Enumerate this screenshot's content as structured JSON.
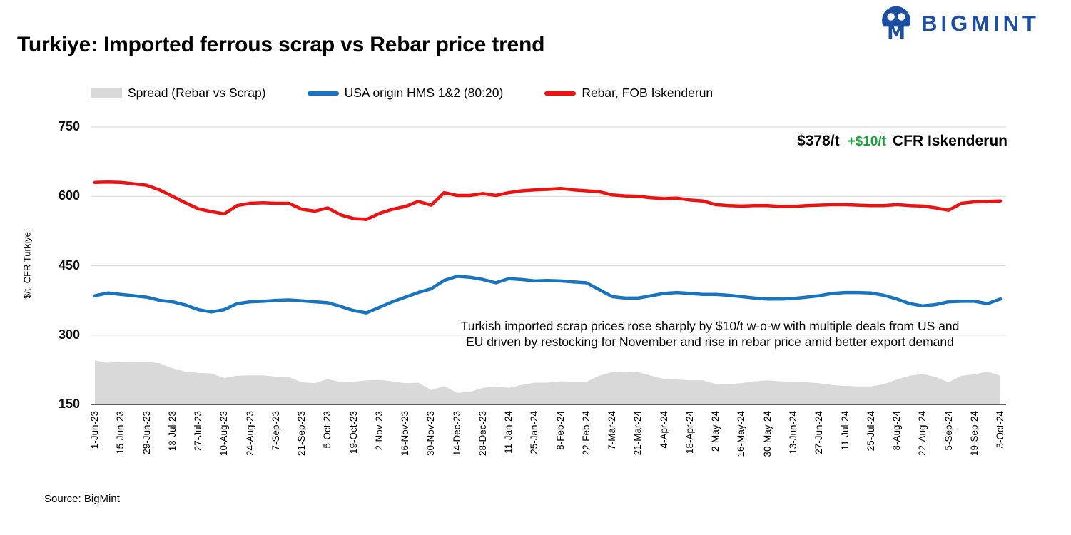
{
  "header": {
    "title": "Turkiye: Imported ferrous scrap vs Rebar price trend",
    "brand": "BIGMINT",
    "brand_color": "#1D4FA1"
  },
  "legend": [
    {
      "label": "Spread (Rebar vs Scrap)",
      "color": "#D9D9D9",
      "type": "area"
    },
    {
      "label": "USA origin HMS 1&2 (80:20)",
      "color": "#1874C0",
      "type": "line"
    },
    {
      "label": "Rebar, FOB Iskenderun",
      "color": "#EE1111",
      "type": "line"
    }
  ],
  "callout": {
    "price": "$378/t",
    "change": "+$10/t",
    "suffix": "CFR Iskenderun",
    "change_color": "#1CA23C"
  },
  "annotation": {
    "line1": "Turkish imported scrap prices rose sharply by $10/t w-o-w with multiple deals from US and",
    "line2": "EU driven by restocking for November and rise in rebar price amid better export demand"
  },
  "axis": {
    "y_title": "$/t, CFR Turkiye"
  },
  "source": "Source: BigMint",
  "chart_data": {
    "type": "line",
    "title": "Turkiye: Imported ferrous scrap vs Rebar price trend",
    "xlabel": "",
    "ylabel": "$/t, CFR Turkiye",
    "ylim": [
      150,
      750
    ],
    "yticks": [
      150,
      300,
      450,
      600,
      750
    ],
    "grid": "horizontal",
    "legend_position": "top",
    "x_label_every": 2,
    "x_labels": [
      "1-Jun-23",
      "15-Jun-23",
      "29-Jun-23",
      "13-Jul-23",
      "27-Jul-23",
      "10-Aug-23",
      "24-Aug-23",
      "7-Sep-23",
      "21-Sep-23",
      "5-Oct-23",
      "19-Oct-23",
      "2-Nov-23",
      "16-Nov-23",
      "30-Nov-23",
      "14-Dec-23",
      "28-Dec-23",
      "11-Jan-24",
      "25-Jan-24",
      "8-Feb-24",
      "22-Feb-24",
      "7-Mar-24",
      "21-Mar-24",
      "4-Apr-24",
      "18-Apr-24",
      "2-May-24",
      "16-May-24",
      "30-May-24",
      "13-Jun-24",
      "27-Jun-24",
      "11-Jul-24",
      "25-Jul-24",
      "8-Aug-24",
      "22-Aug-24",
      "5-Sep-24",
      "19-Sep-24",
      "3-Oct-24"
    ],
    "x": [
      "1-Jun-23",
      "8-Jun-23",
      "15-Jun-23",
      "22-Jun-23",
      "29-Jun-23",
      "6-Jul-23",
      "13-Jul-23",
      "20-Jul-23",
      "27-Jul-23",
      "3-Aug-23",
      "10-Aug-23",
      "17-Aug-23",
      "24-Aug-23",
      "31-Aug-23",
      "7-Sep-23",
      "14-Sep-23",
      "21-Sep-23",
      "28-Sep-23",
      "5-Oct-23",
      "12-Oct-23",
      "19-Oct-23",
      "26-Oct-23",
      "2-Nov-23",
      "9-Nov-23",
      "16-Nov-23",
      "23-Nov-23",
      "30-Nov-23",
      "7-Dec-23",
      "14-Dec-23",
      "21-Dec-23",
      "28-Dec-23",
      "4-Jan-24",
      "11-Jan-24",
      "18-Jan-24",
      "25-Jan-24",
      "1-Feb-24",
      "8-Feb-24",
      "15-Feb-24",
      "22-Feb-24",
      "29-Feb-24",
      "7-Mar-24",
      "14-Mar-24",
      "21-Mar-24",
      "28-Mar-24",
      "4-Apr-24",
      "11-Apr-24",
      "18-Apr-24",
      "25-Apr-24",
      "2-May-24",
      "9-May-24",
      "16-May-24",
      "23-May-24",
      "30-May-24",
      "6-Jun-24",
      "13-Jun-24",
      "20-Jun-24",
      "27-Jun-24",
      "4-Jul-24",
      "11-Jul-24",
      "18-Jul-24",
      "25-Jul-24",
      "1-Aug-24",
      "8-Aug-24",
      "15-Aug-24",
      "22-Aug-24",
      "29-Aug-24",
      "5-Sep-24",
      "12-Sep-24",
      "19-Sep-24",
      "26-Sep-24",
      "3-Oct-24"
    ],
    "series": [
      {
        "id": "spread-area",
        "name": "Spread (Rebar vs Scrap)",
        "type": "area",
        "color": "#D9D9D9",
        "values": [
          245,
          240,
          242,
          242,
          242,
          239,
          228,
          221,
          218,
          217,
          207,
          212,
          213,
          213,
          210,
          209,
          198,
          196,
          205,
          198,
          199,
          202,
          203,
          200,
          196,
          197,
          181,
          190,
          175,
          177,
          186,
          189,
          186,
          192,
          197,
          197,
          200,
          199,
          199,
          212,
          220,
          221,
          220,
          212,
          205,
          204,
          202,
          202,
          194,
          194,
          196,
          200,
          202,
          200,
          199,
          198,
          196,
          192,
          190,
          189,
          189,
          194,
          204,
          212,
          216,
          209,
          198,
          212,
          215,
          221,
          212
        ]
      },
      {
        "id": "hms-line",
        "name": "USA origin HMS 1&2 (80:20)",
        "type": "line",
        "color": "#1874C0",
        "values": [
          385,
          391,
          388,
          385,
          382,
          375,
          372,
          365,
          355,
          350,
          355,
          368,
          372,
          373,
          375,
          376,
          374,
          372,
          370,
          362,
          353,
          348,
          360,
          372,
          382,
          392,
          400,
          418,
          427,
          425,
          420,
          413,
          422,
          420,
          417,
          418,
          417,
          415,
          413,
          398,
          383,
          380,
          380,
          385,
          390,
          392,
          390,
          388,
          388,
          386,
          383,
          380,
          378,
          378,
          379,
          382,
          385,
          390,
          392,
          392,
          391,
          386,
          378,
          368,
          363,
          366,
          372,
          373,
          373,
          368,
          378
        ]
      },
      {
        "id": "rebar-line",
        "name": "Rebar, FOB Iskenderun",
        "type": "line",
        "color": "#EE1111",
        "values": [
          630,
          631,
          630,
          627,
          624,
          614,
          600,
          586,
          573,
          567,
          562,
          580,
          585,
          586,
          585,
          585,
          572,
          568,
          575,
          560,
          552,
          550,
          563,
          572,
          578,
          589,
          581,
          608,
          602,
          602,
          606,
          602,
          608,
          612,
          614,
          615,
          617,
          614,
          612,
          610,
          603,
          601,
          600,
          597,
          595,
          596,
          592,
          590,
          582,
          580,
          579,
          580,
          580,
          578,
          578,
          580,
          581,
          582,
          582,
          581,
          580,
          580,
          582,
          580,
          579,
          575,
          570,
          585,
          588,
          589,
          590
        ]
      }
    ]
  }
}
